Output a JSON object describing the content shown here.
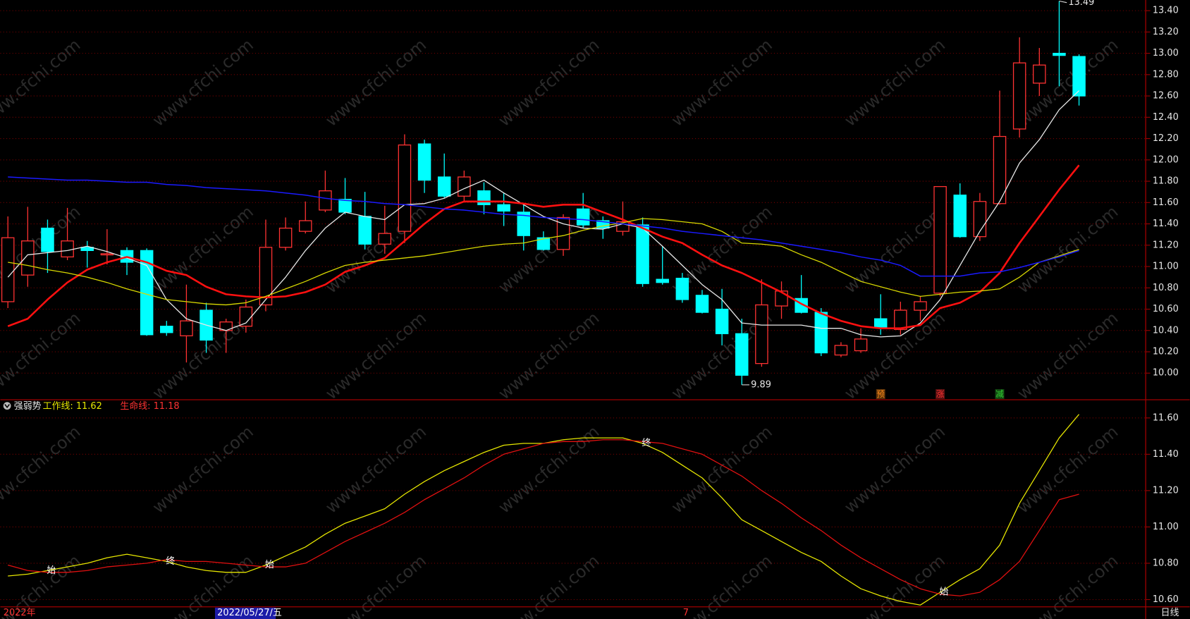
{
  "chart_data": [
    {
      "type": "candlestick",
      "open": [
        10.67,
        10.92,
        11.36,
        11.09,
        11.18,
        11.11,
        11.15,
        11.15,
        10.44,
        10.35,
        10.59,
        10.4,
        10.44,
        10.64,
        11.18,
        11.33,
        11.53,
        11.63,
        11.47,
        11.21,
        11.33,
        12.15,
        11.84,
        11.66,
        11.71,
        11.58,
        11.51,
        11.27,
        11.16,
        11.54,
        11.43,
        11.33,
        11.39,
        10.88,
        10.89,
        10.73,
        10.6,
        10.37,
        10.09,
        10.63,
        10.7,
        10.57,
        10.17,
        10.21,
        10.51,
        10.41,
        10.59,
        10.75,
        11.67,
        11.28,
        11.59,
        12.29,
        12.72,
        13.0,
        12.97
      ],
      "high": [
        11.47,
        11.56,
        11.44,
        11.55,
        11.24,
        11.35,
        11.18,
        11.17,
        10.49,
        10.83,
        10.66,
        10.51,
        10.69,
        11.44,
        11.46,
        11.61,
        11.9,
        11.83,
        11.7,
        11.57,
        12.24,
        12.19,
        12.06,
        11.9,
        11.79,
        11.69,
        11.58,
        11.33,
        11.49,
        11.69,
        11.47,
        11.61,
        11.46,
        11.19,
        10.94,
        10.78,
        10.79,
        10.51,
        10.88,
        10.86,
        10.92,
        10.61,
        10.29,
        10.42,
        10.74,
        10.67,
        10.72,
        11.75,
        11.78,
        11.69,
        12.65,
        13.15,
        13.05,
        13.49,
        12.99
      ],
      "low": [
        10.61,
        10.81,
        10.94,
        11.06,
        10.99,
        11.02,
        10.92,
        10.35,
        10.35,
        10.1,
        10.19,
        10.19,
        10.38,
        10.58,
        11.15,
        11.31,
        11.51,
        11.49,
        11.16,
        11.12,
        11.22,
        11.69,
        11.64,
        11.61,
        11.49,
        11.38,
        11.15,
        11.15,
        11.1,
        11.36,
        11.26,
        11.29,
        10.81,
        10.83,
        10.66,
        10.56,
        10.26,
        9.89,
        10.06,
        10.51,
        10.56,
        10.16,
        10.15,
        10.19,
        10.36,
        10.36,
        10.49,
        10.72,
        11.27,
        11.24,
        11.58,
        12.21,
        12.6,
        12.69,
        12.51
      ],
      "close": [
        11.27,
        11.24,
        11.14,
        11.24,
        11.15,
        11.12,
        11.04,
        10.36,
        10.38,
        10.49,
        10.31,
        10.48,
        10.62,
        11.18,
        11.36,
        11.43,
        11.71,
        11.51,
        11.21,
        11.31,
        12.14,
        11.81,
        11.66,
        11.84,
        11.58,
        11.52,
        11.29,
        11.16,
        11.46,
        11.39,
        11.36,
        11.42,
        10.84,
        10.85,
        10.69,
        10.57,
        10.37,
        9.98,
        10.64,
        10.77,
        10.57,
        10.19,
        10.26,
        10.32,
        10.43,
        10.59,
        10.67,
        11.75,
        11.28,
        11.61,
        12.22,
        12.91,
        12.89,
        12.98,
        12.6
      ],
      "up_color": "#ff3232",
      "down_color": "#00ffff",
      "series": [
        {
          "color": "#e8e8e8",
          "width": 1.2,
          "values": [
            10.9,
            11.11,
            11.13,
            11.15,
            11.19,
            11.14,
            11.08,
            11.01,
            10.69,
            10.51,
            10.45,
            10.4,
            10.47,
            10.69,
            10.9,
            11.15,
            11.36,
            11.51,
            11.47,
            11.44,
            11.58,
            11.59,
            11.64,
            11.73,
            11.81,
            11.69,
            11.58,
            11.47,
            11.4,
            11.36,
            11.35,
            11.4,
            11.36,
            11.19,
            11.01,
            10.83,
            10.69,
            10.47,
            10.45,
            10.45,
            10.45,
            10.42,
            10.42,
            10.36,
            10.34,
            10.35,
            10.47,
            10.69,
            11.01,
            11.33,
            11.61,
            11.97,
            12.19,
            12.47,
            12.65
          ]
        },
        {
          "color": "#ff1010",
          "width": 2.4,
          "values": [
            10.44,
            10.51,
            10.69,
            10.85,
            10.97,
            11.04,
            11.09,
            11.04,
            10.96,
            10.92,
            10.81,
            10.74,
            10.72,
            10.71,
            10.72,
            10.76,
            10.83,
            10.95,
            11.01,
            11.08,
            11.24,
            11.4,
            11.54,
            11.61,
            11.61,
            11.61,
            11.59,
            11.56,
            11.58,
            11.58,
            11.51,
            11.44,
            11.36,
            11.28,
            11.22,
            11.11,
            11.01,
            10.94,
            10.85,
            10.76,
            10.65,
            10.56,
            10.49,
            10.44,
            10.42,
            10.42,
            10.45,
            10.61,
            10.66,
            10.76,
            10.94,
            11.22,
            11.47,
            11.72,
            11.95
          ]
        },
        {
          "color": "#d8d800",
          "width": 1.2,
          "values": [
            11.04,
            11.01,
            10.97,
            10.94,
            10.9,
            10.85,
            10.79,
            10.74,
            10.69,
            10.67,
            10.65,
            10.64,
            10.66,
            10.72,
            10.79,
            10.86,
            10.94,
            11.01,
            11.04,
            11.06,
            11.08,
            11.1,
            11.13,
            11.16,
            11.19,
            11.21,
            11.22,
            11.26,
            11.29,
            11.34,
            11.38,
            11.41,
            11.45,
            11.44,
            11.42,
            11.4,
            11.33,
            11.22,
            11.21,
            11.19,
            11.11,
            11.04,
            10.95,
            10.86,
            10.81,
            10.76,
            10.72,
            10.74,
            10.76,
            10.77,
            10.79,
            10.9,
            11.04,
            11.1,
            11.16
          ]
        },
        {
          "color": "#1a1aff",
          "width": 1.4,
          "values": [
            11.84,
            11.83,
            11.82,
            11.81,
            11.81,
            11.8,
            11.79,
            11.79,
            11.77,
            11.76,
            11.74,
            11.73,
            11.72,
            11.71,
            11.69,
            11.67,
            11.64,
            11.62,
            11.61,
            11.59,
            11.58,
            11.56,
            11.54,
            11.53,
            11.51,
            11.49,
            11.48,
            11.46,
            11.45,
            11.44,
            11.42,
            11.4,
            11.38,
            11.36,
            11.33,
            11.31,
            11.29,
            11.27,
            11.25,
            11.22,
            11.19,
            11.16,
            11.13,
            11.09,
            11.06,
            11.01,
            10.91,
            10.91,
            10.91,
            10.94,
            10.95,
            10.99,
            11.04,
            11.09,
            11.15
          ]
        }
      ],
      "markers": [
        {
          "text": "预",
          "index": 44,
          "color": "#ff8c1a"
        },
        {
          "text": "涨",
          "index": 47,
          "color": "#ff3232"
        },
        {
          "text": "减",
          "index": 50,
          "color": "#33cc33"
        }
      ],
      "ylim": [
        9.75,
        13.5
      ],
      "yticks": [
        {
          "value": 13.4,
          "label": "13.40"
        },
        {
          "value": 13.2,
          "label": "13.20"
        },
        {
          "value": 13,
          "label": "13.00"
        },
        {
          "value": 12.8,
          "label": "12.80"
        },
        {
          "value": 12.6,
          "label": "12.60"
        },
        {
          "value": 12.4,
          "label": "12.40"
        },
        {
          "value": 12.2,
          "label": "12.20"
        },
        {
          "value": 12,
          "label": "12.00"
        },
        {
          "value": 11.8,
          "label": "11.80"
        },
        {
          "value": 11.6,
          "label": "11.60"
        },
        {
          "value": 11.4,
          "label": "11.40"
        },
        {
          "value": 11.2,
          "label": "11.20"
        },
        {
          "value": 11,
          "label": "11.00"
        },
        {
          "value": 10.8,
          "label": "10.80"
        },
        {
          "value": 10.6,
          "label": "10.60"
        },
        {
          "value": 10.4,
          "label": "10.40"
        },
        {
          "value": 10.2,
          "label": "10.20"
        },
        {
          "value": 10,
          "label": "10.00"
        }
      ],
      "grid": true
    },
    {
      "type": "line",
      "title": "强弱势",
      "legend": [
        "工作线: 11.62",
        "生命线: 11.18"
      ],
      "series": [
        {
          "color": "#e6e600",
          "values": [
            10.73,
            10.74,
            10.76,
            10.78,
            10.8,
            10.83,
            10.85,
            10.83,
            10.81,
            10.78,
            10.76,
            10.75,
            10.75,
            10.79,
            10.84,
            10.89,
            10.96,
            11.02,
            11.06,
            11.1,
            11.18,
            11.25,
            11.31,
            11.36,
            11.41,
            11.45,
            11.46,
            11.46,
            11.48,
            11.49,
            11.49,
            11.49,
            11.46,
            11.41,
            11.34,
            11.27,
            11.16,
            11.04,
            10.98,
            10.92,
            10.86,
            10.81,
            10.73,
            10.66,
            10.62,
            10.59,
            10.57,
            10.64,
            10.71,
            10.77,
            10.9,
            11.13,
            11.31,
            11.49,
            11.62
          ]
        },
        {
          "color": "#e01010",
          "values": [
            10.79,
            10.76,
            10.75,
            10.75,
            10.76,
            10.78,
            10.79,
            10.8,
            10.82,
            10.81,
            10.81,
            10.8,
            10.79,
            10.78,
            10.78,
            10.8,
            10.86,
            10.92,
            10.97,
            11.02,
            11.08,
            11.15,
            11.21,
            11.27,
            11.34,
            11.4,
            11.43,
            11.46,
            11.47,
            11.47,
            11.48,
            11.48,
            11.47,
            11.46,
            11.43,
            11.4,
            11.34,
            11.28,
            11.2,
            11.13,
            11.05,
            10.98,
            10.9,
            10.83,
            10.77,
            10.71,
            10.66,
            10.63,
            10.62,
            10.64,
            10.71,
            10.81,
            10.98,
            11.15,
            11.18
          ]
        }
      ],
      "markers": [
        {
          "text": "始",
          "index": 2
        },
        {
          "text": "终",
          "index": 8
        },
        {
          "text": "始",
          "index": 13
        },
        {
          "text": "终",
          "index": 32
        },
        {
          "text": "始",
          "index": 47
        }
      ],
      "ylim": [
        10.56,
        11.7
      ],
      "yticks": [
        {
          "value": 11.6,
          "label": "11.60"
        },
        {
          "value": 11.4,
          "label": "11.40"
        },
        {
          "value": 11.2,
          "label": "11.20"
        },
        {
          "value": 11,
          "label": "11.00"
        },
        {
          "value": 10.8,
          "label": "10.80"
        },
        {
          "value": 10.6,
          "label": "10.60"
        }
      ],
      "grid": true
    }
  ],
  "footer": {
    "year": "2022年",
    "cursor_date": "2022/05/27/五",
    "month": "7",
    "period": "日线"
  },
  "watermark": "www.cfchi.com"
}
